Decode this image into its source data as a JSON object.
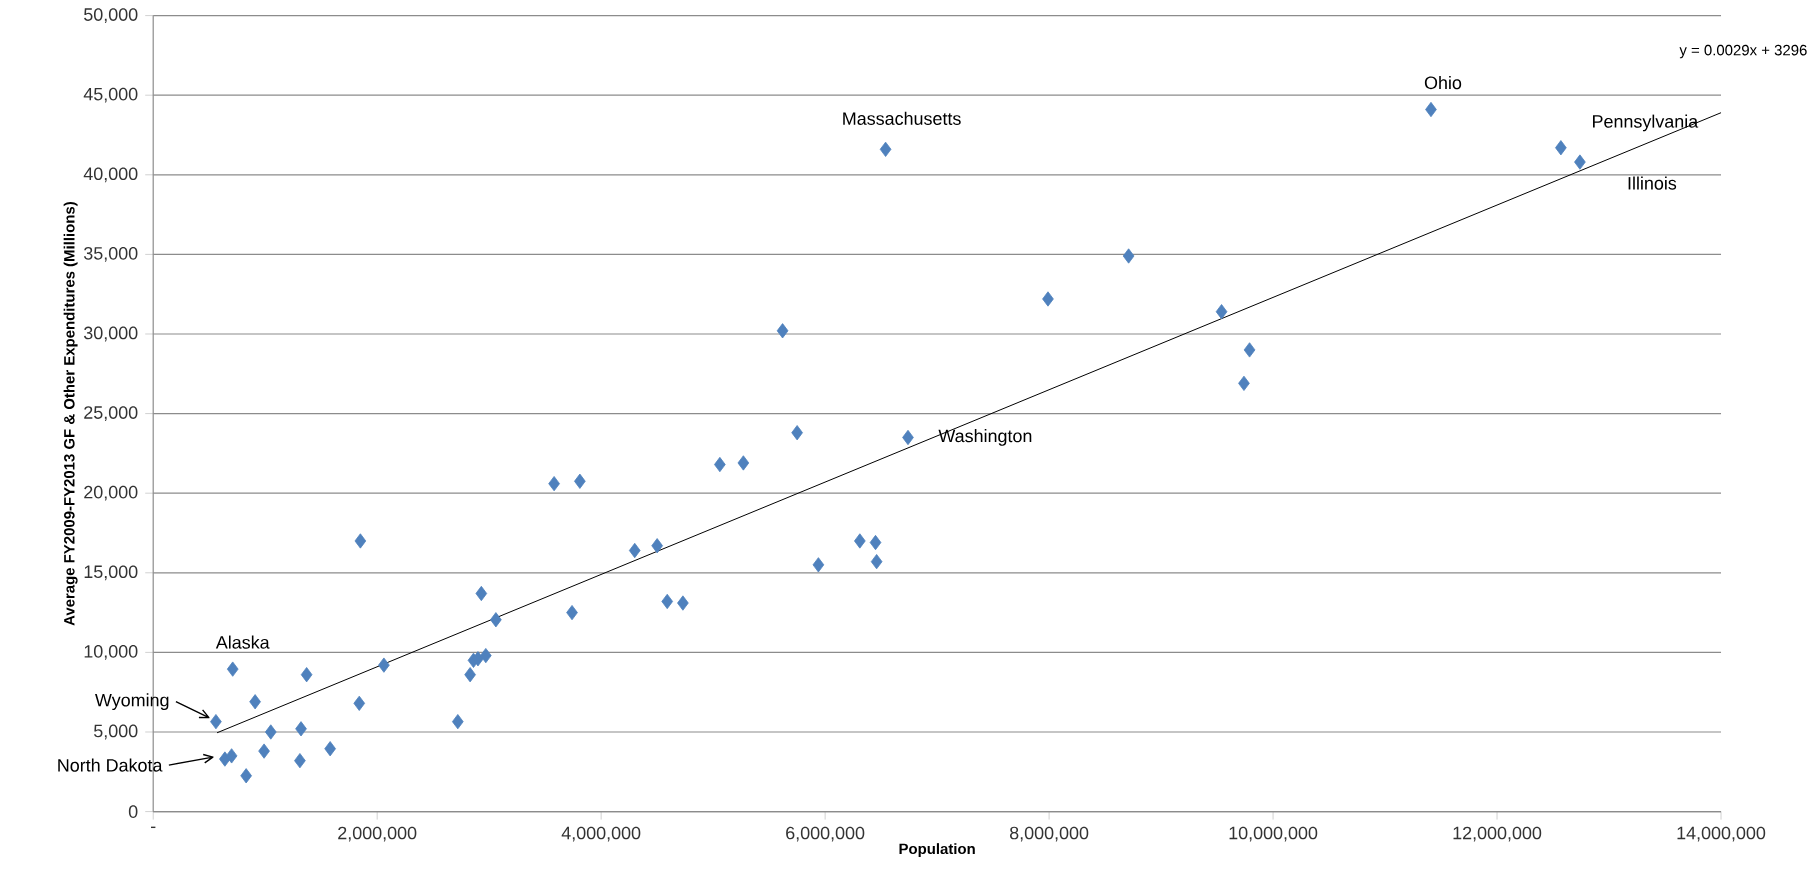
{
  "chart_data": {
    "type": "scatter",
    "xlabel": "Population",
    "ylabel": "Average FY2009-FY2013 GF & Other Expenditures (Millions)",
    "xlim": [
      0,
      14000000
    ],
    "ylim": [
      0,
      50000
    ],
    "xticks": [
      {
        "value": 0,
        "label": "-"
      },
      {
        "value": 2000000,
        "label": "2,000,000"
      },
      {
        "value": 4000000,
        "label": "4,000,000"
      },
      {
        "value": 6000000,
        "label": "6,000,000"
      },
      {
        "value": 8000000,
        "label": "8,000,000"
      },
      {
        "value": 10000000,
        "label": "10,000,000"
      },
      {
        "value": 12000000,
        "label": "12,000,000"
      },
      {
        "value": 14000000,
        "label": "14,000,000"
      }
    ],
    "yticks": [
      {
        "value": 0,
        "label": "0"
      },
      {
        "value": 5000,
        "label": "5,000"
      },
      {
        "value": 10000,
        "label": "10,000"
      },
      {
        "value": 15000,
        "label": "15,000"
      },
      {
        "value": 20000,
        "label": "20,000"
      },
      {
        "value": 25000,
        "label": "25,000"
      },
      {
        "value": 30000,
        "label": "30,000"
      },
      {
        "value": 35000,
        "label": "35,000"
      },
      {
        "value": 40000,
        "label": "40,000"
      },
      {
        "value": 45000,
        "label": "45,000"
      },
      {
        "value": 50000,
        "label": "50,000"
      }
    ],
    "grid": "y",
    "marker": "diamond",
    "series": [
      {
        "color": "#4f81bd",
        "x": [
          710000,
          560000,
          640000,
          700000,
          830000,
          910000,
          990000,
          1050000,
          1320000,
          1310000,
          1370000,
          1580000,
          1850000,
          1840000,
          2060000,
          2720000,
          2830000,
          2860000,
          2900000,
          2970000,
          2930000,
          3060000,
          3580000,
          3810000,
          3740000,
          4300000,
          4500000,
          4590000,
          4730000,
          5060000,
          5270000,
          5750000,
          5940000,
          6310000,
          6450000,
          6460000,
          6740000,
          6540000,
          5620000,
          7990000,
          8710000,
          9540000,
          9790000,
          9740000,
          11410000,
          12570000,
          12740000
        ],
        "values": [
          8950,
          5650,
          3300,
          3500,
          2250,
          6900,
          3800,
          5000,
          5200,
          3200,
          8600,
          3950,
          17000,
          6800,
          9200,
          5650,
          8600,
          9500,
          9600,
          9800,
          13700,
          12050,
          20600,
          20750,
          12500,
          16400,
          16700,
          13200,
          13100,
          21800,
          21900,
          23800,
          15500,
          17000,
          16900,
          15700,
          23500,
          41600,
          30200,
          32200,
          34900,
          31400,
          29000,
          26900,
          44100,
          41700,
          40800
        ]
      },
      {
        "type": "line",
        "color": "#000000",
        "marker": "none",
        "x": [
          570000,
          14000000
        ],
        "values": [
          4950,
          43900
        ]
      }
    ],
    "annotations": [
      {
        "text": "Ohio",
        "x": 11410000,
        "y": 44100
      },
      {
        "text": "Massachusetts",
        "x": 6540000,
        "y": 41600
      },
      {
        "text": "Pennsylvania",
        "x": 12570000,
        "y": 41700
      },
      {
        "text": "Illinois",
        "x": 12740000,
        "y": 40800
      },
      {
        "text": "Washington",
        "x": 6740000,
        "y": 23500
      },
      {
        "text": "Alaska",
        "x": 710000,
        "y": 8950
      },
      {
        "text": "Wyoming",
        "x": 560000,
        "y": 5650
      },
      "North Dakota",
      "y = 0.0029x + 3296"
    ]
  }
}
